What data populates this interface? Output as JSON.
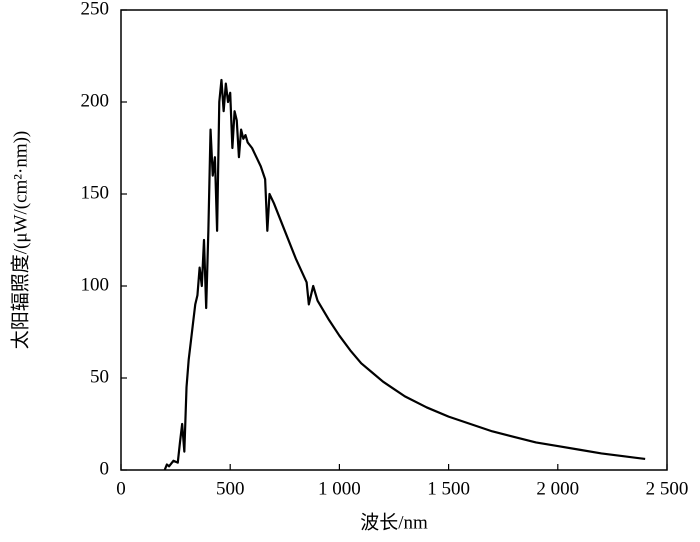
{
  "chart_data": {
    "type": "line",
    "x_label": "波长/nm",
    "y_label": "太阳辐照度/(μW/(cm²·nm))",
    "x": [
      200,
      210,
      220,
      240,
      260,
      270,
      280,
      290,
      300,
      310,
      320,
      330,
      340,
      350,
      360,
      370,
      380,
      390,
      400,
      410,
      420,
      430,
      440,
      450,
      460,
      470,
      480,
      490,
      500,
      510,
      520,
      530,
      540,
      550,
      560,
      570,
      580,
      600,
      620,
      640,
      660,
      670,
      680,
      700,
      750,
      800,
      850,
      860,
      880,
      900,
      950,
      1000,
      1050,
      1100,
      1150,
      1200,
      1250,
      1300,
      1400,
      1500,
      1600,
      1700,
      1800,
      1900,
      2000,
      2100,
      2200,
      2300,
      2400
    ],
    "series": [
      {
        "color": "#000000",
        "values": [
          0,
          3,
          2,
          5,
          4,
          15,
          25,
          10,
          45,
          60,
          70,
          80,
          90,
          95,
          110,
          100,
          125,
          88,
          130,
          185,
          160,
          170,
          130,
          200,
          212,
          195,
          210,
          200,
          205,
          175,
          195,
          190,
          170,
          185,
          180,
          182,
          178,
          175,
          170,
          165,
          158,
          130,
          150,
          145,
          130,
          115,
          102,
          90,
          100,
          92,
          82,
          73,
          65,
          58,
          53,
          48,
          44,
          40,
          34,
          29,
          25,
          21,
          18,
          15,
          13,
          11,
          9,
          7.5,
          6
        ]
      }
    ],
    "xlim": [
      0,
      2500
    ],
    "xticks": [
      0,
      500,
      {
        "value": 1000,
        "label": "1 000"
      },
      {
        "value": 1500,
        "label": "1 500"
      },
      {
        "value": 2000,
        "label": "2 000"
      },
      {
        "value": 2500,
        "label": "2 500"
      }
    ],
    "ylim": [
      0,
      250
    ],
    "yticks": [
      0,
      50,
      100,
      150,
      200,
      250
    ]
  }
}
